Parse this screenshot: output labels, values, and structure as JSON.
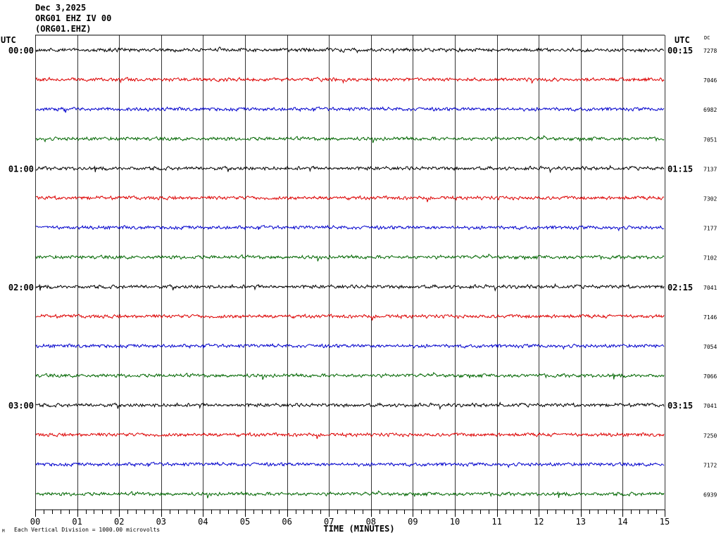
{
  "header": {
    "date": "Dec 3,2025",
    "station_line": "ORG01 EHZ IV 00",
    "channel_code": "(ORG01.EHZ)"
  },
  "left_axis_label": "UTC",
  "right_axis_label": "UTC",
  "dc_label": "DC",
  "footer": {
    "scale_note": "Each Vertical Division = 1000.00 microvolts",
    "corner_mark": "M"
  },
  "chart_data": {
    "type": "line",
    "title": "",
    "xlabel": "TIME (MINUTES)",
    "ylabel": "",
    "xlim": [
      0,
      15
    ],
    "x_ticks": [
      "00",
      "01",
      "02",
      "03",
      "04",
      "05",
      "06",
      "07",
      "08",
      "09",
      "10",
      "11",
      "12",
      "13",
      "14",
      "15"
    ],
    "grid": true,
    "row_colors": [
      "#000000",
      "#dd0000",
      "#0000cc",
      "#006600"
    ],
    "left_time_labels": [
      {
        "row": 0,
        "text": "00:00"
      },
      {
        "row": 4,
        "text": "01:00"
      },
      {
        "row": 8,
        "text": "02:00"
      },
      {
        "row": 12,
        "text": "03:00"
      }
    ],
    "right_time_labels": [
      {
        "row": 0,
        "text": "00:15"
      },
      {
        "row": 4,
        "text": "01:15"
      },
      {
        "row": 8,
        "text": "02:15"
      },
      {
        "row": 12,
        "text": "03:15"
      }
    ],
    "dc_values": [
      "7278",
      "7046",
      "6982",
      "7051",
      "7137",
      "7302",
      "7177",
      "7102",
      "7041",
      "7146",
      "7054",
      "7066",
      "7041",
      "7250",
      "7172",
      "6939"
    ],
    "traces": [
      {
        "row": 0,
        "color": "#000000"
      },
      {
        "row": 1,
        "color": "#dd0000"
      },
      {
        "row": 2,
        "color": "#0000cc"
      },
      {
        "row": 3,
        "color": "#006600"
      },
      {
        "row": 4,
        "color": "#000000"
      },
      {
        "row": 5,
        "color": "#dd0000"
      },
      {
        "row": 6,
        "color": "#0000cc"
      },
      {
        "row": 7,
        "color": "#006600"
      },
      {
        "row": 8,
        "color": "#000000"
      },
      {
        "row": 9,
        "color": "#dd0000"
      },
      {
        "row": 10,
        "color": "#0000cc"
      },
      {
        "row": 11,
        "color": "#006600"
      },
      {
        "row": 12,
        "color": "#000000"
      },
      {
        "row": 13,
        "color": "#dd0000"
      },
      {
        "row": 14,
        "color": "#0000cc"
      },
      {
        "row": 15,
        "color": "#006600"
      }
    ]
  }
}
